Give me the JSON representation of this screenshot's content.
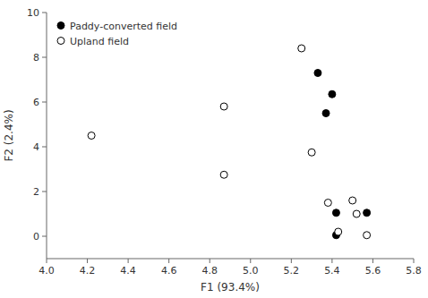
{
  "chart_data": {
    "type": "scatter",
    "title": "",
    "xlabel": "F1 (93.4%)",
    "ylabel": "F2 (2.4%)",
    "xlim": [
      4.0,
      5.8
    ],
    "ylim": [
      -1,
      10
    ],
    "xticks": [
      {
        "value": 4.0,
        "label": "4.0"
      },
      4.2,
      4.4,
      4.6,
      4.8,
      {
        "value": 5.0,
        "label": "5.0"
      },
      5.2,
      5.4,
      5.6,
      5.8
    ],
    "yticks": [
      0,
      2,
      4,
      6,
      8,
      10
    ],
    "grid": false,
    "legend": "upper left",
    "series": [
      {
        "name": "Paddy-converted field",
        "color": "#000000",
        "marker": "circle",
        "x": [
          5.33,
          5.4,
          5.37,
          5.42,
          5.57,
          5.42
        ],
        "values": [
          7.3,
          6.35,
          5.5,
          1.05,
          1.05,
          0.05
        ]
      },
      {
        "name": "Upland field",
        "color": "#ffffff",
        "marker": "circle",
        "x": [
          4.22,
          4.87,
          4.87,
          5.25,
          5.3,
          5.38,
          5.43,
          5.5,
          5.52,
          5.57
        ],
        "values": [
          4.5,
          5.8,
          2.75,
          8.4,
          3.75,
          1.5,
          0.2,
          1.6,
          1.0,
          0.05
        ]
      }
    ]
  }
}
